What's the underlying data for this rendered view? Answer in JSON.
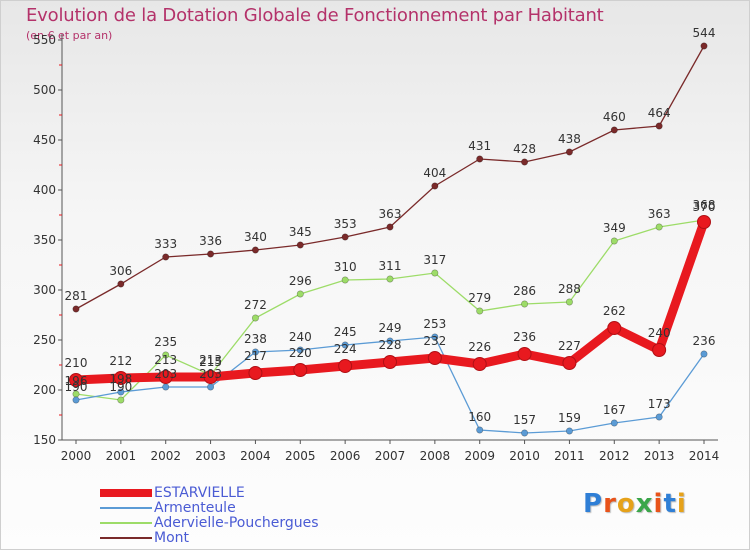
{
  "title": "Evolution de la Dotation Globale de Fonctionnement par Habitant",
  "subtitle": "(en € et par an)",
  "logo_text": "Proxiti",
  "colors": {
    "title": "#b4326a",
    "axis_text": "#333333",
    "legend_text": "#4a5bd4",
    "logo": [
      "#2f7fd6",
      "#e8531a",
      "#e6a21a",
      "#3aa64a",
      "#e8531a",
      "#2f7fd6",
      "#e6a21a"
    ]
  },
  "chart_data": {
    "type": "line",
    "title": "Evolution de la Dotation Globale de Fonctionnement par Habitant",
    "subtitle": "(en € et par an)",
    "xlabel": "",
    "ylabel": "",
    "ylim": [
      150,
      550
    ],
    "yticks": [
      150,
      200,
      250,
      300,
      350,
      400,
      450,
      500,
      550
    ],
    "grid": false,
    "legend_position": "bottom-left",
    "x": [
      "2000",
      "2001",
      "2002",
      "2003",
      "2004",
      "2005",
      "2006",
      "2007",
      "2008",
      "2009",
      "2010",
      "2011",
      "2012",
      "2013",
      "2014"
    ],
    "series": [
      {
        "name": "ESTARVIELLE",
        "color": "#e8191f",
        "emphasis": true,
        "values": [
          210,
          212,
          213,
          213,
          217,
          220,
          224,
          228,
          232,
          226,
          236,
          227,
          262,
          240,
          368
        ]
      },
      {
        "name": "Armenteule",
        "color": "#5b9bd5",
        "values": [
          190,
          198,
          203,
          203,
          238,
          240,
          245,
          249,
          253,
          160,
          157,
          159,
          167,
          173,
          236
        ]
      },
      {
        "name": "Adervielle-Pouchergues",
        "color": "#9ddc68",
        "values": [
          196,
          190,
          235,
          215,
          272,
          296,
          310,
          311,
          317,
          279,
          286,
          288,
          349,
          363,
          370
        ]
      },
      {
        "name": "Mont",
        "color": "#7a2a2a",
        "values": [
          281,
          306,
          333,
          336,
          340,
          345,
          353,
          363,
          404,
          431,
          428,
          438,
          460,
          464,
          544
        ]
      }
    ]
  }
}
